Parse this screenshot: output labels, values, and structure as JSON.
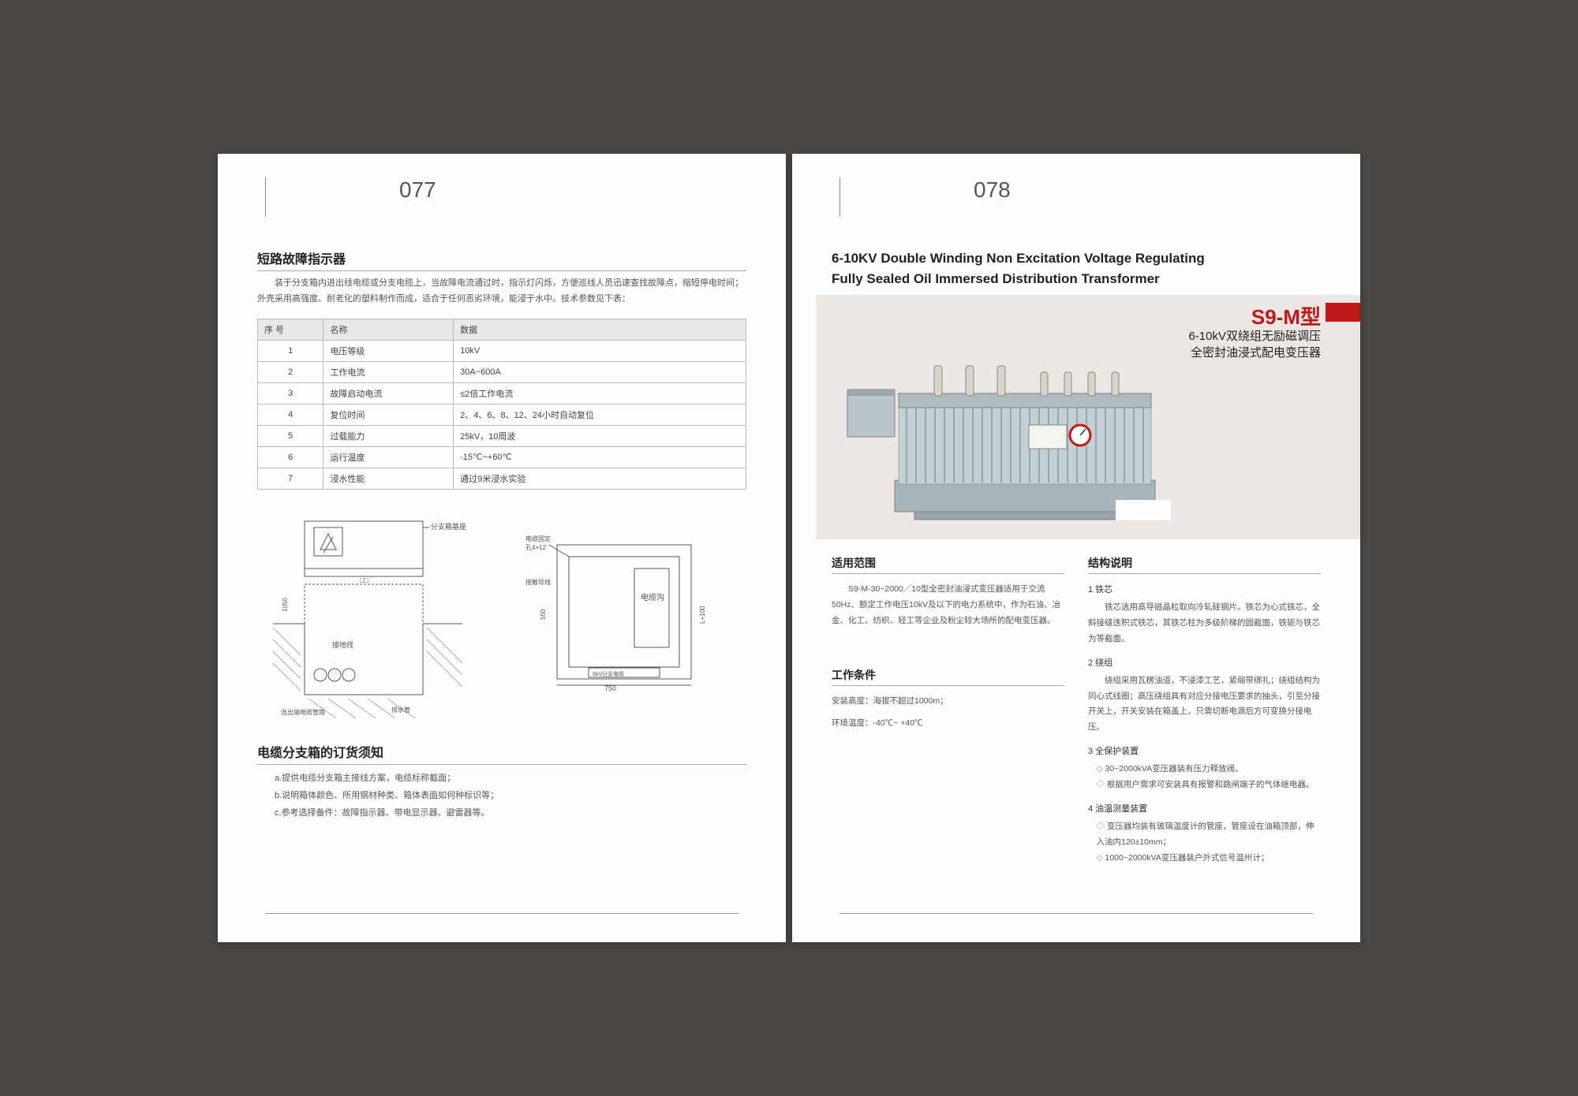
{
  "left": {
    "page_number": "077",
    "title": "短路故障指示器",
    "intro": "装于分支箱内进出线电缆或分支电缆上，当故障电流通过时，指示灯闪烁，方便巡线人员迅速查找故障点，缩短停电时间；外壳采用高强度、耐老化的塑料制作而成，适合于任何恶劣环境，能浸于水中。技术参数见下表：",
    "table": {
      "headers": [
        "序 号",
        "名称",
        "数据"
      ],
      "rows": [
        [
          "1",
          "电压等级",
          "10kV"
        ],
        [
          "2",
          "工作电流",
          "30A~600A"
        ],
        [
          "3",
          "故障启动电流",
          "≤2倍工作电流"
        ],
        [
          "4",
          "复位时间",
          "2、4、6、8、12、24小时自动复位"
        ],
        [
          "5",
          "过载能力",
          "25kV，10周波"
        ],
        [
          "6",
          "运行温度",
          "-15℃~+60℃"
        ],
        [
          "7",
          "浸水性能",
          "通过9米浸水实验"
        ]
      ]
    },
    "diagram_labels": {
      "a": "分支箱基座",
      "b": "电缆沟",
      "c": "接地线",
      "d": "连出端电缆管路",
      "e": "排水管",
      "f": "接触导线"
    },
    "order_title": "电缆分支箱的订货须知",
    "order_items": [
      "a.提供电缆分支箱主接线方案，电缆标称截面；",
      "b.说明箱体颜色、所用钢材种类、箱体表面如何种标识等；",
      "c.参考选择备件：故障指示器、带电显示器、避雷器等。"
    ]
  },
  "right": {
    "page_number": "078",
    "eng_title_l1": "6-10KV Double Winding Non Excitation Voltage Regulating",
    "eng_title_l2": "Fully Sealed Oil Immersed Distribution Transformer",
    "model": "S9-M型",
    "cn_sub_l1": "6-10kV双绕组无励磁调压",
    "cn_sub_l2": "全密封油浸式配电变压器",
    "scope_title": "适用范围",
    "scope_text": "S9-M-30~2000／10型全密封油浸式变压器适用于交流50Hz、额定工作电压10kV及以下的电力系统中，作为石油、冶金、化工、纺织、轻工等企业及粉尘较大场所的配电变压器。",
    "cond_title": "工作条件",
    "cond_l1": "安装高度：海拔不超过1000m；",
    "cond_l2": "环境温度：-40℃~ +40℃",
    "struct_title": "结构说明",
    "struct": [
      {
        "head": "1 铁芯",
        "body": "铁芯选用高导磁晶粒取向冷轧硅钢片。铁芯为心式铁芯，全斜接缝迭积式铁芯，其铁芯柱为多级阶梯的圆截面，铁轭与铁芯为等截面。"
      },
      {
        "head": "2 绕组",
        "body": "绕组采用瓦楞油道，不浸漆工艺，紧缩带绑扎；绕组结构为同心式线圈；高压绕组具有对应分接电压要求的抽头，引至分接开关上，开关安装在箱盖上，只需切断电源后方可变换分接电压。"
      },
      {
        "head": "3 全保护装置",
        "bullets": [
          "30~2000kVA变压器装有压力释放阀。",
          "根据用户需求可安装具有报警和跳闸端子的气体继电器。"
        ]
      },
      {
        "head": "4 油温测量装置",
        "bullets": [
          "变压器均装有玻璃温度计的管座，管座设在油箱顶部，伸入油内120±10mm；",
          "1000~2000kVA变压器装户外式信号温州计；"
        ]
      }
    ]
  },
  "colors": {
    "bg": "#4a4643",
    "page": "#fefefe",
    "accent": "#c01818",
    "banner_bg": "#ece7e3",
    "text": "#555",
    "border": "#bbb"
  }
}
